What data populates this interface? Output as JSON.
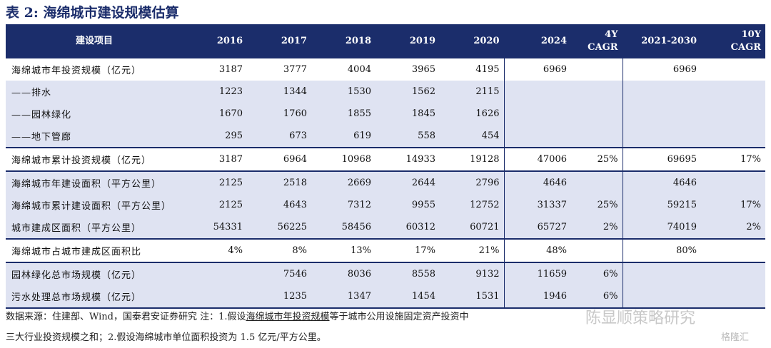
{
  "title": "表 2:  海绵城市建设规模估算",
  "header": {
    "label": "建设项目",
    "y2016": "2016",
    "y2017": "2017",
    "y2018": "2018",
    "y2019": "2019",
    "y2020": "2020",
    "y2024": "2024",
    "cagr4_a": "4Y",
    "cagr4_b": "CAGR",
    "range": "2021-2030",
    "cagr10_a": "10Y",
    "cagr10_b": "CAGR"
  },
  "rows": [
    {
      "label": "海绵城市年投资规模（亿元）",
      "v": [
        "3187",
        "3777",
        "4004",
        "3965",
        "4195",
        "6969",
        "",
        "6969",
        ""
      ]
    },
    {
      "label": "——排水",
      "v": [
        "1223",
        "1344",
        "1530",
        "1562",
        "2115",
        "",
        "",
        "",
        ""
      ]
    },
    {
      "label": "——园林绿化",
      "v": [
        "1670",
        "1760",
        "1855",
        "1845",
        "1626",
        "",
        "",
        "",
        ""
      ]
    },
    {
      "label": "——地下管廊",
      "v": [
        "295",
        "673",
        "619",
        "558",
        "454",
        "",
        "",
        "",
        ""
      ]
    },
    {
      "label": "海绵城市累计投资规模（亿元）",
      "v": [
        "3187",
        "6964",
        "10968",
        "14933",
        "19128",
        "47006",
        "25%",
        "69695",
        "17%"
      ]
    },
    {
      "label": "海绵城市年建设面积（平方公里）",
      "v": [
        "2125",
        "2518",
        "2669",
        "2644",
        "2796",
        "4646",
        "",
        "4646",
        ""
      ]
    },
    {
      "label": "海绵城市累计建设面积（平方公里）",
      "v": [
        "2125",
        "4643",
        "7312",
        "9955",
        "12752",
        "31337",
        "25%",
        "59215",
        "17%"
      ]
    },
    {
      "label": "城市建成区面积（平方公里）",
      "v": [
        "54331",
        "56225",
        "58456",
        "60312",
        "60721",
        "65727",
        "2%",
        "74019",
        "2%"
      ]
    },
    {
      "label": "海绵城市占城市建成区面积比",
      "v": [
        "4%",
        "8%",
        "13%",
        "17%",
        "21%",
        "48%",
        "",
        "80%",
        ""
      ]
    },
    {
      "label": "园林绿化总市场规模（亿元）",
      "v": [
        "",
        "7546",
        "8036",
        "8558",
        "9132",
        "11659",
        "6%",
        "",
        ""
      ]
    },
    {
      "label": "污水处理总市场规模（亿元）",
      "v": [
        "",
        "1235",
        "1347",
        "1454",
        "1531",
        "1946",
        "6%",
        "",
        ""
      ]
    }
  ],
  "footnote": {
    "line1_a": "数据来源：住建部、Wind，国泰君安证券研究      注：1.假设",
    "line1_b": "海绵城市年投资规模",
    "line1_c": "等于城市公用设施固定资产投资中",
    "line2": "三大行业投资规模之和；2.假设海绵城市单位面积投资为 1.5 亿元/平方公里。"
  },
  "watermark": {
    "text1": "陈显顺策略研究",
    "text2": "格隆汇"
  }
}
